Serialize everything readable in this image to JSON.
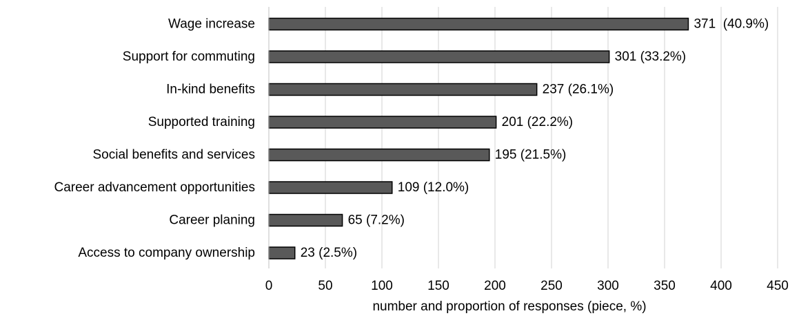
{
  "chart_data": {
    "type": "bar",
    "orientation": "horizontal",
    "title": "",
    "xlabel": "number and proportion of responses (piece, %)",
    "ylabel": "",
    "categories": [
      "Wage increase",
      "Support for commuting",
      "In-kind benefits",
      "Supported training",
      "Social benefits and services",
      "Career advancement opportunities",
      "Career planing",
      "Access to company ownership"
    ],
    "values": [
      371,
      301,
      237,
      201,
      195,
      109,
      65,
      23
    ],
    "data_labels": [
      "371  (40.9%)",
      "301 (33.2%)",
      "237 (26.1%)",
      "201 (22.2%)",
      "195 (21.5%)",
      "109 (12.0%)",
      "65 (7.2%)",
      "23 (2.5%)"
    ],
    "xlim": [
      0,
      450
    ],
    "xticks": [
      "0",
      "50",
      "100",
      "150",
      "200",
      "250",
      "300",
      "350",
      "400",
      "450"
    ],
    "grid": "vertical",
    "legend": "none",
    "bar_color": "#595959",
    "bar_edge_color": "#000000",
    "grid_color": "#d0d0d0"
  }
}
